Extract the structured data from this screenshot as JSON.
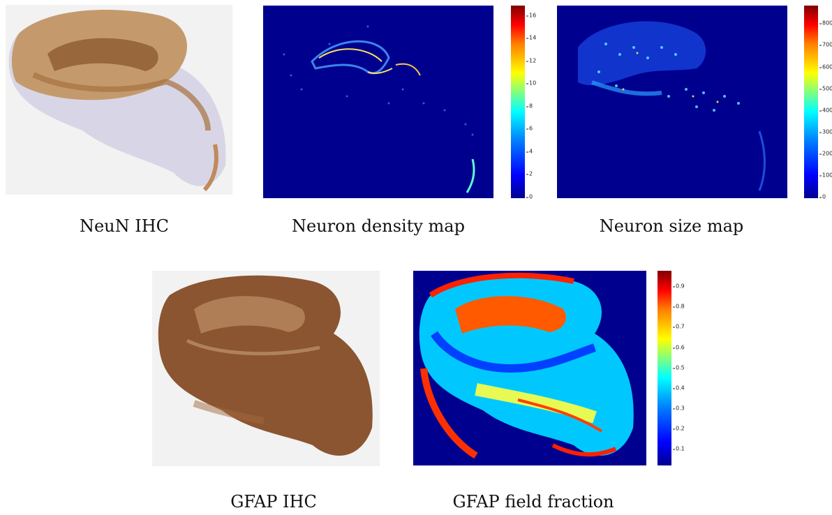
{
  "panels": [
    {
      "caption": "NeuN IHC"
    },
    {
      "caption": "Neuron density map",
      "colorbar": {
        "ticks": [
          "16",
          "14",
          "12",
          "10",
          "8",
          "6",
          "4",
          "2",
          "0"
        ]
      }
    },
    {
      "caption": "Neuron size map",
      "colorbar": {
        "ticks": [
          "800",
          "700",
          "600",
          "500",
          "400",
          "300",
          "200",
          "100",
          "0"
        ]
      }
    },
    {
      "caption": "GFAP IHC"
    },
    {
      "caption": "GFAP field fraction",
      "colorbar": {
        "ticks": [
          "0.9",
          "0.8",
          "0.7",
          "0.6",
          "0.5",
          "0.4",
          "0.3",
          "0.2",
          "0.1"
        ]
      }
    }
  ],
  "colors": {
    "map_background": "#00008f",
    "neun_stain": "#b07a4a",
    "gfap_stain": "#8a5530"
  },
  "colormap": "jet"
}
